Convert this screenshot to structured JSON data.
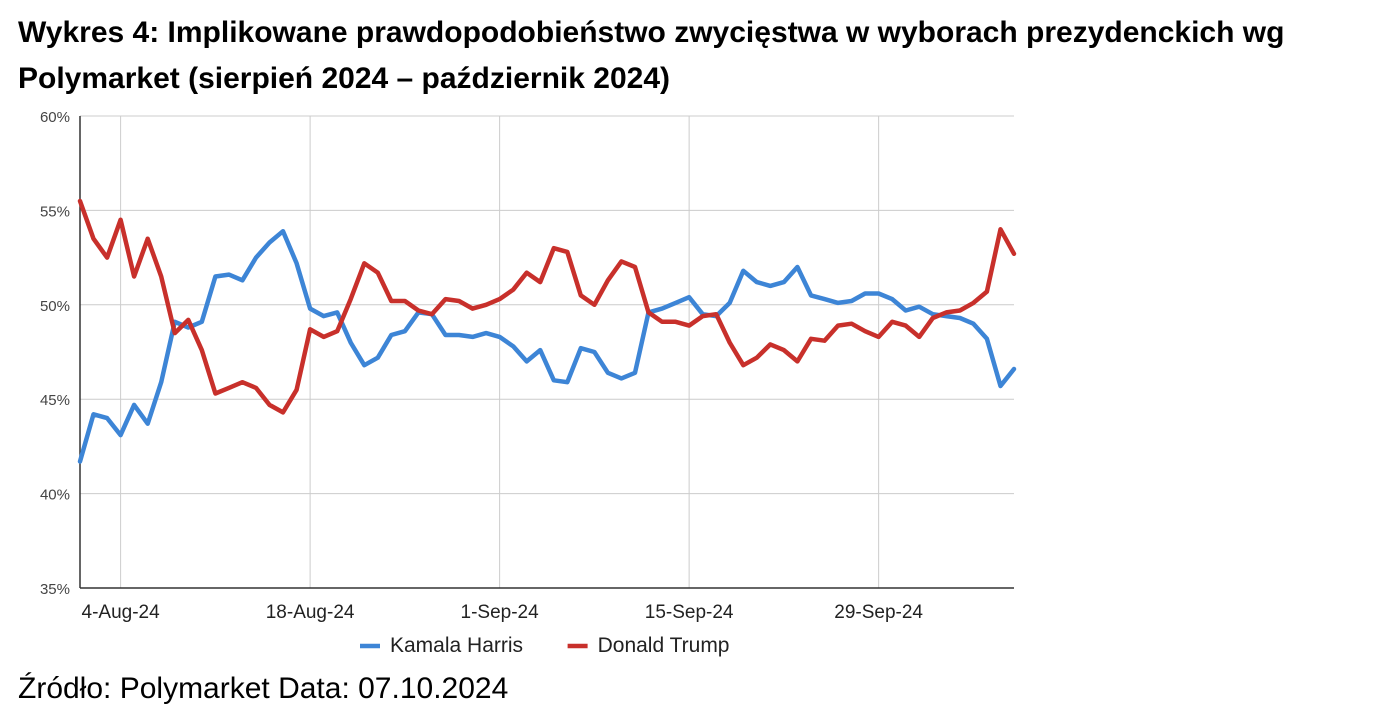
{
  "title": "Wykres 4: Implikowane prawdopodobieństwo zwycięstwa w wyborach prezydenckich wg Polymarket (sierpień 2024 – październik 2024)",
  "source": "Źródło: Polymarket Data: 07.10.2024",
  "chart_data": {
    "type": "line",
    "title": "",
    "xlabel": "",
    "ylabel": "",
    "ylim": [
      35,
      60
    ],
    "yticks": [
      35,
      40,
      45,
      50,
      55,
      60
    ],
    "ytick_format": "%",
    "xtick_labels": [
      "4-Aug-24",
      "18-Aug-24",
      "1-Sep-24",
      "15-Sep-24",
      "29-Sep-24"
    ],
    "xtick_index": [
      3,
      17,
      31,
      45,
      59
    ],
    "x_start": "2024-08-01",
    "x_end": "2024-10-10",
    "grid": true,
    "legend_position": "bottom",
    "series": [
      {
        "name": "Kamala Harris",
        "color": "#3d85d6",
        "values": [
          41.7,
          44.2,
          44.0,
          43.1,
          44.7,
          43.7,
          45.9,
          49.1,
          48.8,
          49.1,
          51.5,
          51.6,
          51.3,
          52.5,
          53.3,
          53.9,
          52.2,
          49.8,
          49.4,
          49.6,
          48.0,
          46.8,
          47.2,
          48.4,
          48.6,
          49.6,
          49.5,
          48.4,
          48.4,
          48.3,
          48.5,
          48.3,
          47.8,
          47.0,
          47.6,
          46.0,
          45.9,
          47.7,
          47.5,
          46.4,
          46.1,
          46.4,
          49.6,
          49.8,
          50.1,
          50.4,
          49.5,
          49.4,
          50.1,
          51.8,
          51.2,
          51.0,
          51.2,
          52.0,
          50.5,
          50.3,
          50.1,
          50.2,
          50.6,
          50.6,
          50.3,
          49.7,
          49.9,
          49.5,
          49.4,
          49.3,
          49.0,
          48.2,
          45.7,
          46.6
        ]
      },
      {
        "name": "Donald Trump",
        "color": "#c8302b",
        "values": [
          55.5,
          53.5,
          52.5,
          54.5,
          51.5,
          53.5,
          51.5,
          48.5,
          49.2,
          47.6,
          45.3,
          45.6,
          45.9,
          45.6,
          44.7,
          44.3,
          45.5,
          48.7,
          48.3,
          48.6,
          50.3,
          52.2,
          51.7,
          50.2,
          50.2,
          49.7,
          49.5,
          50.3,
          50.2,
          49.8,
          50.0,
          50.3,
          50.8,
          51.7,
          51.2,
          53.0,
          52.8,
          50.5,
          50.0,
          51.3,
          52.3,
          52.0,
          49.6,
          49.1,
          49.1,
          48.9,
          49.4,
          49.5,
          48.0,
          46.8,
          47.2,
          47.9,
          47.6,
          47.0,
          48.2,
          48.1,
          48.9,
          49.0,
          48.6,
          48.3,
          49.1,
          48.9,
          48.3,
          49.3,
          49.6,
          49.7,
          50.1,
          50.7,
          54.0,
          52.7
        ]
      }
    ]
  }
}
